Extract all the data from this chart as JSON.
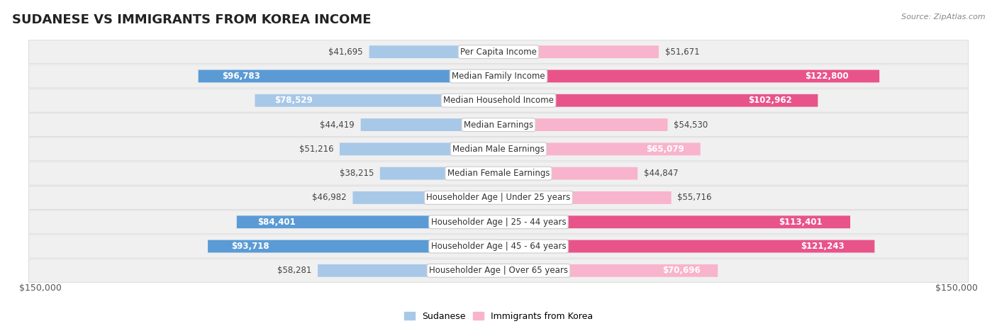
{
  "title": "SUDANESE VS IMMIGRANTS FROM KOREA INCOME",
  "source": "Source: ZipAtlas.com",
  "categories": [
    "Per Capita Income",
    "Median Family Income",
    "Median Household Income",
    "Median Earnings",
    "Median Male Earnings",
    "Median Female Earnings",
    "Householder Age | Under 25 years",
    "Householder Age | 25 - 44 years",
    "Householder Age | 45 - 64 years",
    "Householder Age | Over 65 years"
  ],
  "sudanese_values": [
    41695,
    96783,
    78529,
    44419,
    51216,
    38215,
    46982,
    84401,
    93718,
    58281
  ],
  "korea_values": [
    51671,
    122800,
    102962,
    54530,
    65079,
    44847,
    55716,
    113401,
    121243,
    70696
  ],
  "sudanese_labels": [
    "$41,695",
    "$96,783",
    "$78,529",
    "$44,419",
    "$51,216",
    "$38,215",
    "$46,982",
    "$84,401",
    "$93,718",
    "$58,281"
  ],
  "korea_labels": [
    "$51,671",
    "$122,800",
    "$102,962",
    "$54,530",
    "$65,079",
    "$44,847",
    "$55,716",
    "$113,401",
    "$121,243",
    "$70,696"
  ],
  "max_value": 150000,
  "x_label_left": "$150,000",
  "x_label_right": "$150,000",
  "blue_light": "#a8c8e8",
  "blue_dark": "#5b9bd5",
  "pink_light": "#f8b4cc",
  "pink_dark": "#e8538a",
  "row_bg": "#f0f0f0",
  "row_border": "#d8d8d8",
  "label_box_color": "#ffffff",
  "title_fontsize": 13,
  "bar_label_fontsize": 8.5,
  "cat_label_fontsize": 8.5,
  "tick_fontsize": 9,
  "legend_fontsize": 9,
  "inside_threshold": 65000,
  "dark_inside_threshold": 80000
}
